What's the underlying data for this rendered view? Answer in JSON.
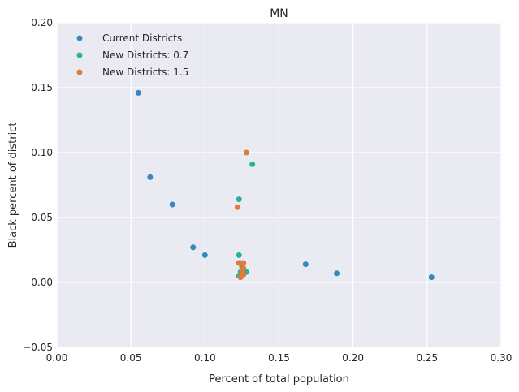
{
  "chart_data": {
    "type": "scatter",
    "title": "MN",
    "xlabel": "Percent of total population",
    "ylabel": "Black percent of district",
    "xlim": [
      0.0,
      0.3
    ],
    "ylim": [
      -0.05,
      0.2
    ],
    "xticks": [
      "0.00",
      "0.05",
      "0.10",
      "0.15",
      "0.20",
      "0.25",
      "0.30"
    ],
    "yticks": [
      "−0.05",
      "0.00",
      "0.05",
      "0.10",
      "0.15",
      "0.20"
    ],
    "grid": true,
    "legend_position": "top-left",
    "series": [
      {
        "name": "Current Districts",
        "color": "#348abd",
        "points": [
          {
            "x": 0.055,
            "y": 0.146
          },
          {
            "x": 0.063,
            "y": 0.081
          },
          {
            "x": 0.078,
            "y": 0.06
          },
          {
            "x": 0.092,
            "y": 0.027
          },
          {
            "x": 0.1,
            "y": 0.021
          },
          {
            "x": 0.168,
            "y": 0.014
          },
          {
            "x": 0.189,
            "y": 0.007
          },
          {
            "x": 0.253,
            "y": 0.004
          }
        ]
      },
      {
        "name": "New Districts: 0.7",
        "color": "#2ab19a",
        "points": [
          {
            "x": 0.132,
            "y": 0.091
          },
          {
            "x": 0.123,
            "y": 0.064
          },
          {
            "x": 0.123,
            "y": 0.021
          },
          {
            "x": 0.124,
            "y": 0.015
          },
          {
            "x": 0.125,
            "y": 0.012
          },
          {
            "x": 0.128,
            "y": 0.008
          },
          {
            "x": 0.124,
            "y": 0.008
          },
          {
            "x": 0.123,
            "y": 0.005
          }
        ]
      },
      {
        "name": "New Districts: 1.5",
        "color": "#e07b39",
        "points": [
          {
            "x": 0.128,
            "y": 0.1
          },
          {
            "x": 0.122,
            "y": 0.058
          },
          {
            "x": 0.123,
            "y": 0.015
          },
          {
            "x": 0.126,
            "y": 0.015
          },
          {
            "x": 0.126,
            "y": 0.011
          },
          {
            "x": 0.125,
            "y": 0.008
          },
          {
            "x": 0.126,
            "y": 0.006
          },
          {
            "x": 0.124,
            "y": 0.004
          }
        ]
      }
    ]
  }
}
